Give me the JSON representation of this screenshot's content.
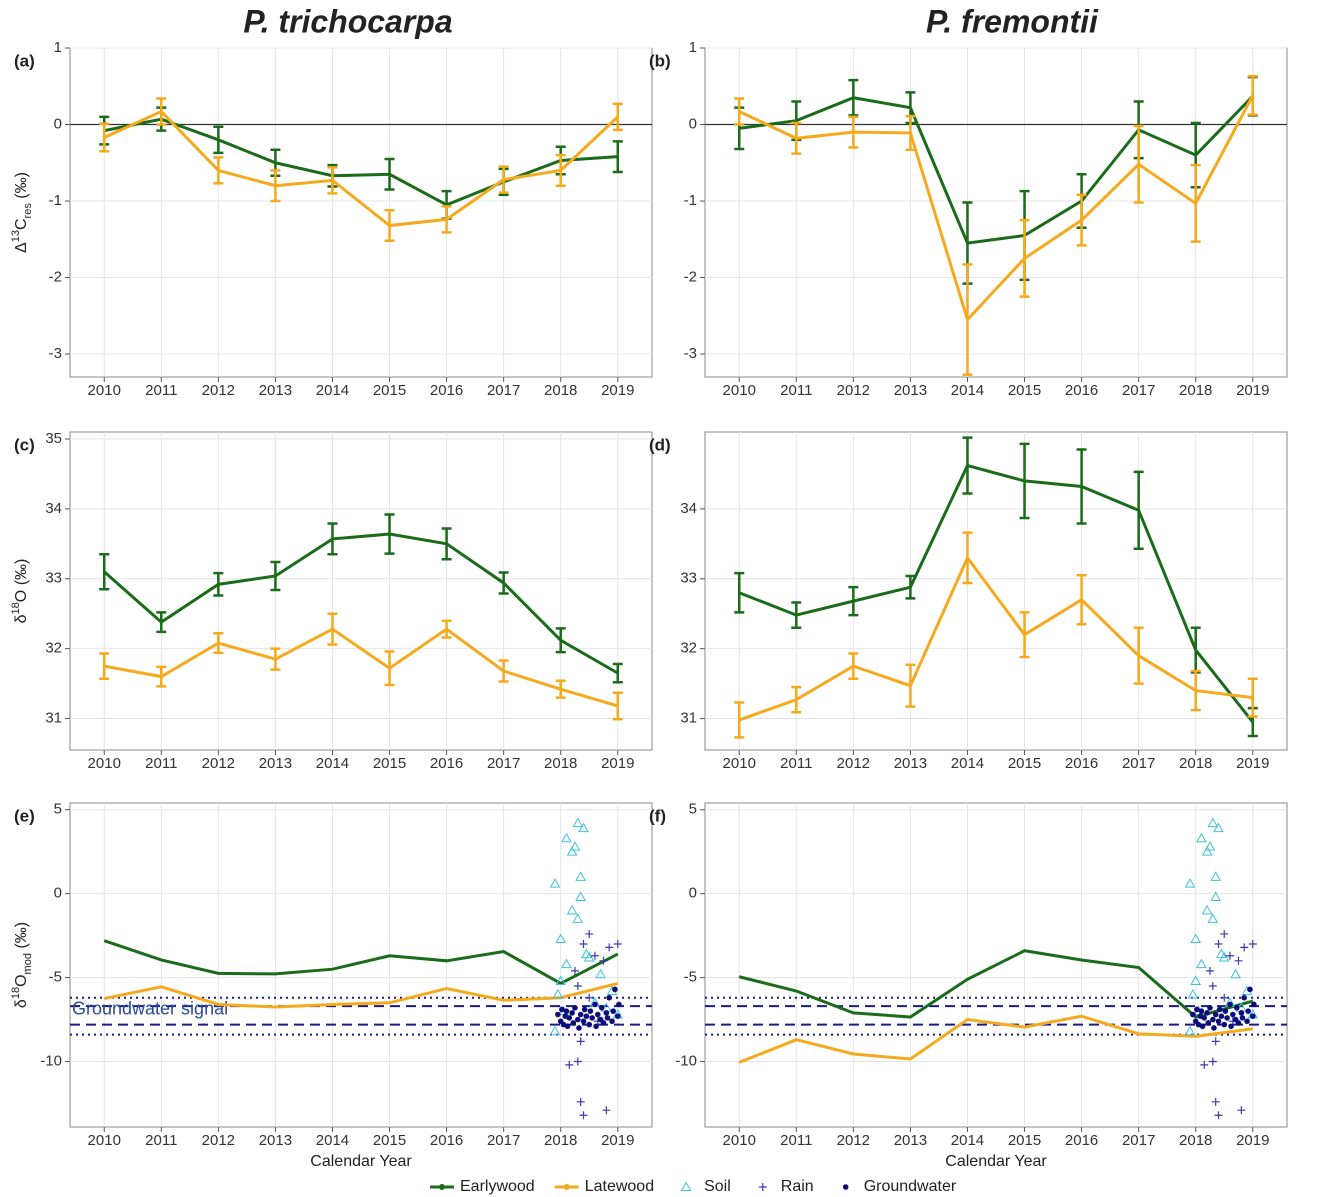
{
  "column_titles": [
    "P. trichocarpa",
    "P. fremontii"
  ],
  "chart_data": [
    {
      "type": "line",
      "panel": "(a)",
      "ylabel": [
        {
          "text": "Δ",
          "pos": ""
        },
        {
          "text": "13",
          "pos": "sup"
        },
        {
          "text": "C",
          "pos": ""
        },
        {
          "text": "res",
          "pos": "sub"
        },
        {
          "text": " (‰)",
          "pos": ""
        }
      ],
      "x": [
        2010,
        2011,
        2012,
        2013,
        2014,
        2015,
        2016,
        2017,
        2018,
        2019
      ],
      "xlim": [
        2009.4,
        2019.6
      ],
      "xticks": [
        2010,
        2011,
        2012,
        2013,
        2014,
        2015,
        2016,
        2017,
        2018,
        2019
      ],
      "ylim": [
        -3.3,
        1
      ],
      "yticks": [
        -3,
        -2,
        -1,
        0,
        1
      ],
      "grid": true,
      "hlines": [
        {
          "y": 0,
          "color": "#333333",
          "dash": "solid"
        }
      ],
      "series": [
        {
          "name": "Earlywood",
          "color": "#1a6b1a",
          "values": [
            -0.08,
            0.07,
            -0.2,
            -0.5,
            -0.67,
            -0.65,
            -1.05,
            -0.75,
            -0.47,
            -0.42
          ],
          "errors": [
            0.18,
            0.15,
            0.17,
            0.17,
            0.14,
            0.2,
            0.18,
            0.17,
            0.18,
            0.2
          ]
        },
        {
          "name": "Latewood",
          "color": "#f5a91c",
          "values": [
            -0.17,
            0.17,
            -0.6,
            -0.8,
            -0.73,
            -1.32,
            -1.24,
            -0.72,
            -0.6,
            0.1
          ],
          "errors": [
            0.18,
            0.17,
            0.17,
            0.2,
            0.17,
            0.2,
            0.17,
            0.17,
            0.2,
            0.17
          ]
        }
      ]
    },
    {
      "type": "line",
      "panel": "(b)",
      "x": [
        2010,
        2011,
        2012,
        2013,
        2014,
        2015,
        2016,
        2017,
        2018,
        2019
      ],
      "xlim": [
        2009.4,
        2019.6
      ],
      "xticks": [
        2010,
        2011,
        2012,
        2013,
        2014,
        2015,
        2016,
        2017,
        2018,
        2019
      ],
      "ylim": [
        -3.3,
        1
      ],
      "yticks": [
        -3,
        -2,
        -1,
        0,
        1
      ],
      "grid": true,
      "hlines": [
        {
          "y": 0,
          "color": "#333333",
          "dash": "solid"
        }
      ],
      "series": [
        {
          "name": "Earlywood",
          "color": "#1a6b1a",
          "values": [
            -0.05,
            0.05,
            0.35,
            0.22,
            -1.55,
            -1.45,
            -1.0,
            -0.07,
            -0.4,
            0.37
          ],
          "errors": [
            0.27,
            0.25,
            0.23,
            0.2,
            0.53,
            0.58,
            0.35,
            0.37,
            0.42,
            0.25
          ]
        },
        {
          "name": "Latewood",
          "color": "#f5a91c",
          "values": [
            0.17,
            -0.18,
            -0.1,
            -0.11,
            -2.55,
            -1.75,
            -1.25,
            -0.52,
            -1.03,
            0.38
          ],
          "errors": [
            0.17,
            0.2,
            0.2,
            0.22,
            0.72,
            0.5,
            0.33,
            0.5,
            0.5,
            0.25
          ]
        }
      ]
    },
    {
      "type": "line",
      "panel": "(c)",
      "ylabel": [
        {
          "text": "δ",
          "pos": ""
        },
        {
          "text": "18",
          "pos": "sup"
        },
        {
          "text": "O (‰)",
          "pos": ""
        }
      ],
      "x": [
        2010,
        2011,
        2012,
        2013,
        2014,
        2015,
        2016,
        2017,
        2018,
        2019
      ],
      "xlim": [
        2009.4,
        2019.6
      ],
      "xticks": [
        2010,
        2011,
        2012,
        2013,
        2014,
        2015,
        2016,
        2017,
        2018,
        2019
      ],
      "ylim": [
        30.55,
        35.1
      ],
      "yticks": [
        31,
        32,
        33,
        34,
        35
      ],
      "grid": true,
      "series": [
        {
          "name": "Earlywood",
          "color": "#1a6b1a",
          "values": [
            33.1,
            32.38,
            32.92,
            33.04,
            33.57,
            33.64,
            33.5,
            32.94,
            32.12,
            31.65
          ],
          "errors": [
            0.25,
            0.14,
            0.16,
            0.2,
            0.22,
            0.28,
            0.22,
            0.15,
            0.17,
            0.13
          ]
        },
        {
          "name": "Latewood",
          "color": "#f5a91c",
          "values": [
            31.75,
            31.6,
            32.08,
            31.85,
            32.28,
            31.72,
            32.28,
            31.68,
            31.42,
            31.18
          ],
          "errors": [
            0.18,
            0.14,
            0.14,
            0.15,
            0.22,
            0.24,
            0.12,
            0.15,
            0.12,
            0.19
          ]
        }
      ]
    },
    {
      "type": "line",
      "panel": "(d)",
      "x": [
        2010,
        2011,
        2012,
        2013,
        2014,
        2015,
        2016,
        2017,
        2018,
        2019
      ],
      "xlim": [
        2009.4,
        2019.6
      ],
      "xticks": [
        2010,
        2011,
        2012,
        2013,
        2014,
        2015,
        2016,
        2017,
        2018,
        2019
      ],
      "ylim": [
        30.55,
        35.1
      ],
      "yticks": [
        31,
        32,
        33,
        34
      ],
      "grid": true,
      "series": [
        {
          "name": "Earlywood",
          "color": "#1a6b1a",
          "values": [
            32.8,
            32.48,
            32.68,
            32.88,
            34.62,
            34.4,
            34.32,
            33.98,
            31.98,
            30.95
          ],
          "errors": [
            0.28,
            0.18,
            0.2,
            0.16,
            0.4,
            0.53,
            0.53,
            0.55,
            0.32,
            0.2
          ]
        },
        {
          "name": "Latewood",
          "color": "#f5a91c",
          "values": [
            30.98,
            31.27,
            31.75,
            31.47,
            33.3,
            32.2,
            32.7,
            31.9,
            31.4,
            31.3
          ],
          "errors": [
            0.25,
            0.18,
            0.18,
            0.3,
            0.36,
            0.32,
            0.35,
            0.4,
            0.28,
            0.27
          ]
        }
      ]
    },
    {
      "type": "line",
      "panel": "(e)",
      "ylabel": [
        {
          "text": "δ",
          "pos": ""
        },
        {
          "text": "18",
          "pos": "sup"
        },
        {
          "text": "O",
          "pos": ""
        },
        {
          "text": "mod",
          "pos": "sub"
        },
        {
          "text": " (‰)",
          "pos": ""
        }
      ],
      "xlabel": "Calendar Year",
      "annotation": "Groundwater signal",
      "x": [
        2010,
        2011,
        2012,
        2013,
        2014,
        2015,
        2016,
        2017,
        2018,
        2019
      ],
      "xlim": [
        2009.4,
        2019.6
      ],
      "xticks": [
        2010,
        2011,
        2012,
        2013,
        2014,
        2015,
        2016,
        2017,
        2018,
        2019
      ],
      "ylim": [
        -13.9,
        5.4
      ],
      "yticks": [
        -10,
        -5,
        0,
        5
      ],
      "grid": true,
      "hlines": [
        {
          "y": -6.2,
          "color": "#1a1a8c",
          "dash": "dotted"
        },
        {
          "y": -6.7,
          "color": "#1a1a8c",
          "dash": "dashed"
        },
        {
          "y": -7.8,
          "color": "#1a1a8c",
          "dash": "dashed"
        },
        {
          "y": -8.4,
          "color": "#1a1a8c",
          "dash": "dotted"
        }
      ],
      "series": [
        {
          "name": "Earlywood",
          "color": "#1a6b1a",
          "values": [
            -2.8,
            -3.95,
            -4.75,
            -4.78,
            -4.5,
            -3.7,
            -4.0,
            -3.45,
            -5.35,
            -3.6
          ]
        },
        {
          "name": "Latewood",
          "color": "#f5a91c",
          "values": [
            -6.25,
            -5.55,
            -6.6,
            -6.75,
            -6.6,
            -6.5,
            -5.65,
            -6.35,
            -6.2,
            -5.35
          ]
        },
        {
          "name": "Soil",
          "color": "#3ec0e0",
          "marker": "triangle",
          "x": [
            2017.9,
            2018.0,
            2018.1,
            2018.2,
            2018.25,
            2018.3,
            2018.4,
            2018.35,
            2018.35,
            2018.2,
            2018.3,
            2018.45,
            2018.5,
            2018.1,
            2018.0,
            2017.95,
            2018.05,
            2018.6,
            2018.8,
            2019.0,
            2018.9,
            2018.7,
            2017.9
          ],
          "values": [
            0.6,
            -2.7,
            3.3,
            2.5,
            2.8,
            4.2,
            3.9,
            1.0,
            -0.2,
            -1.0,
            -1.5,
            -3.6,
            -3.8,
            -4.2,
            -5.2,
            -6.0,
            -7.0,
            -6.5,
            -6.8,
            -7.2,
            -5.8,
            -4.8,
            -8.2
          ]
        },
        {
          "name": "Rain",
          "color": "#3b3bb5",
          "marker": "plus",
          "x": [
            2018.4,
            2018.5,
            2018.6,
            2018.75,
            2018.85,
            2019.0,
            2018.3,
            2018.5,
            2018.35,
            2018.15,
            2018.3,
            2018.35,
            2018.4,
            2018.8,
            2018.65,
            2018.25
          ],
          "values": [
            -3.0,
            -2.4,
            -3.7,
            -4.0,
            -3.2,
            -3.0,
            -5.5,
            -6.2,
            -8.8,
            -10.2,
            -10.0,
            -12.4,
            -13.2,
            -12.9,
            -7.6,
            -4.6
          ]
        },
        {
          "name": "Groundwater",
          "color": "#0d0d7a",
          "marker": "dot",
          "x": [
            2017.95,
            2018.0,
            2018.02,
            2018.05,
            2018.08,
            2018.1,
            2018.12,
            2018.15,
            2018.2,
            2018.22,
            2018.25,
            2018.3,
            2018.32,
            2018.35,
            2018.4,
            2018.42,
            2018.45,
            2018.5,
            2018.52,
            2018.55,
            2018.6,
            2018.62,
            2018.65,
            2018.7,
            2018.72,
            2018.75,
            2018.8,
            2018.82,
            2018.85,
            2018.9,
            2018.92,
            2018.95,
            2019.0,
            2019.02
          ],
          "values": [
            -7.2,
            -7.6,
            -6.9,
            -7.8,
            -7.3,
            -7.0,
            -7.9,
            -7.4,
            -7.1,
            -7.7,
            -6.8,
            -7.5,
            -8.0,
            -7.2,
            -7.6,
            -6.9,
            -7.3,
            -7.8,
            -7.0,
            -7.4,
            -6.6,
            -7.9,
            -7.2,
            -7.5,
            -6.8,
            -7.7,
            -7.1,
            -7.4,
            -6.2,
            -7.6,
            -7.0,
            -5.7,
            -7.3,
            -6.6
          ]
        }
      ]
    },
    {
      "type": "line",
      "panel": "(f)",
      "xlabel": "Calendar Year",
      "x": [
        2010,
        2011,
        2012,
        2013,
        2014,
        2015,
        2016,
        2017,
        2018,
        2019
      ],
      "xlim": [
        2009.4,
        2019.6
      ],
      "xticks": [
        2010,
        2011,
        2012,
        2013,
        2014,
        2015,
        2016,
        2017,
        2018,
        2019
      ],
      "ylim": [
        -13.9,
        5.4
      ],
      "yticks": [
        -10,
        -5,
        0,
        5
      ],
      "grid": true,
      "hlines": [
        {
          "y": -6.2,
          "color": "#1a1a8c",
          "dash": "dotted"
        },
        {
          "y": -6.7,
          "color": "#1a1a8c",
          "dash": "dashed"
        },
        {
          "y": -7.8,
          "color": "#1a1a8c",
          "dash": "dashed"
        },
        {
          "y": -8.4,
          "color": "#1a1a8c",
          "dash": "dotted"
        }
      ],
      "series": [
        {
          "name": "Earlywood",
          "color": "#1a6b1a",
          "values": [
            -4.95,
            -5.8,
            -7.1,
            -7.35,
            -5.1,
            -3.4,
            -3.95,
            -4.4,
            -7.35,
            -6.4
          ]
        },
        {
          "name": "Latewood",
          "color": "#f5a91c",
          "values": [
            -10.05,
            -8.7,
            -9.55,
            -9.85,
            -7.5,
            -7.95,
            -7.3,
            -8.35,
            -8.5,
            -8.05
          ]
        },
        {
          "name": "Soil",
          "color": "#3ec0e0",
          "marker": "triangle",
          "x": [
            2017.9,
            2018.0,
            2018.1,
            2018.2,
            2018.25,
            2018.3,
            2018.4,
            2018.35,
            2018.35,
            2018.2,
            2018.3,
            2018.45,
            2018.5,
            2018.1,
            2018.0,
            2017.95,
            2018.05,
            2018.6,
            2018.8,
            2019.0,
            2018.9,
            2018.7,
            2017.9
          ],
          "values": [
            0.6,
            -2.7,
            3.3,
            2.5,
            2.8,
            4.2,
            3.9,
            1.0,
            -0.2,
            -1.0,
            -1.5,
            -3.6,
            -3.8,
            -4.2,
            -5.2,
            -6.0,
            -7.0,
            -6.5,
            -6.8,
            -7.2,
            -5.8,
            -4.8,
            -8.2
          ]
        },
        {
          "name": "Rain",
          "color": "#3b3bb5",
          "marker": "plus",
          "x": [
            2018.4,
            2018.5,
            2018.6,
            2018.75,
            2018.85,
            2019.0,
            2018.3,
            2018.5,
            2018.35,
            2018.15,
            2018.3,
            2018.35,
            2018.4,
            2018.8,
            2018.65,
            2018.25
          ],
          "values": [
            -3.0,
            -2.4,
            -3.7,
            -4.0,
            -3.2,
            -3.0,
            -5.5,
            -6.2,
            -8.8,
            -10.2,
            -10.0,
            -12.4,
            -13.2,
            -12.9,
            -7.6,
            -4.6
          ]
        },
        {
          "name": "Groundwater",
          "color": "#0d0d7a",
          "marker": "dot",
          "x": [
            2017.95,
            2018.0,
            2018.02,
            2018.05,
            2018.08,
            2018.1,
            2018.12,
            2018.15,
            2018.2,
            2018.22,
            2018.25,
            2018.3,
            2018.32,
            2018.35,
            2018.4,
            2018.42,
            2018.45,
            2018.5,
            2018.52,
            2018.55,
            2018.6,
            2018.62,
            2018.65,
            2018.7,
            2018.72,
            2018.75,
            2018.8,
            2018.82,
            2018.85,
            2018.9,
            2018.92,
            2018.95,
            2019.0,
            2019.02
          ],
          "values": [
            -7.2,
            -7.6,
            -6.9,
            -7.8,
            -7.3,
            -7.0,
            -7.9,
            -7.4,
            -7.1,
            -7.7,
            -6.8,
            -7.5,
            -8.0,
            -7.2,
            -7.6,
            -6.9,
            -7.3,
            -7.8,
            -7.0,
            -7.4,
            -6.6,
            -7.9,
            -7.2,
            -7.5,
            -6.8,
            -7.7,
            -7.1,
            -7.4,
            -6.2,
            -7.6,
            -7.0,
            -5.7,
            -7.3,
            -6.6
          ]
        }
      ]
    }
  ]
}
